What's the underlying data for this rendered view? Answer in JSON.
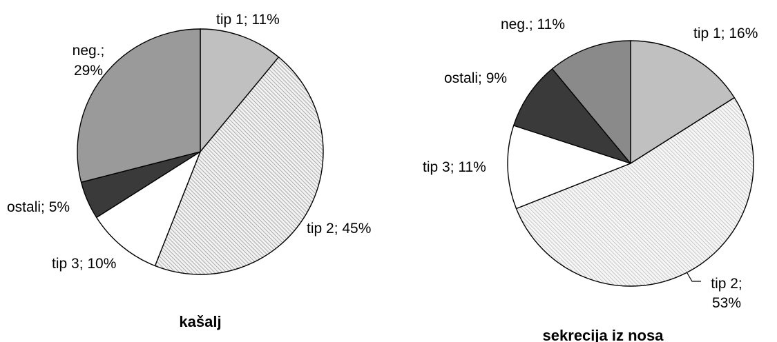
{
  "chart_data": [
    {
      "type": "pie",
      "title": "kašalj",
      "slices": [
        {
          "key": "tip1",
          "label_lines": [
            "tip 1; 11%"
          ],
          "value": 11,
          "fill": "solid-light",
          "color": "#c0c0c0"
        },
        {
          "key": "tip2",
          "label_lines": [
            "tip 2; 45%"
          ],
          "value": 45,
          "fill": "hatch",
          "color": "#d6d6d6"
        },
        {
          "key": "tip3",
          "label_lines": [
            "tip 3; 10%"
          ],
          "value": 10,
          "fill": "white",
          "color": "#ffffff"
        },
        {
          "key": "ostali",
          "label_lines": [
            "ostali; 5%"
          ],
          "value": 5,
          "fill": "solid-dark",
          "color": "#3a3a3a"
        },
        {
          "key": "neg",
          "label_lines": [
            "neg.;",
            "29%"
          ],
          "value": 29,
          "fill": "solid-mid",
          "color": "#9a9a9a"
        }
      ]
    },
    {
      "type": "pie",
      "title": "sekrecija iz nosa",
      "slices": [
        {
          "key": "tip1",
          "label_lines": [
            "tip 1; 16%"
          ],
          "value": 16,
          "fill": "solid-light",
          "color": "#c0c0c0"
        },
        {
          "key": "tip2",
          "label_lines": [
            "tip 2;",
            "53%"
          ],
          "value": 53,
          "fill": "hatch",
          "color": "#e0e0e0"
        },
        {
          "key": "tip3",
          "label_lines": [
            "tip 3; 11%"
          ],
          "value": 11,
          "fill": "white",
          "color": "#ffffff"
        },
        {
          "key": "ostali",
          "label_lines": [
            "ostali; 9%"
          ],
          "value": 9,
          "fill": "solid-dark",
          "color": "#3a3a3a"
        },
        {
          "key": "neg",
          "label_lines": [
            "neg.; 11%"
          ],
          "value": 11,
          "fill": "solid-mid",
          "color": "#8a8a8a"
        }
      ]
    }
  ]
}
